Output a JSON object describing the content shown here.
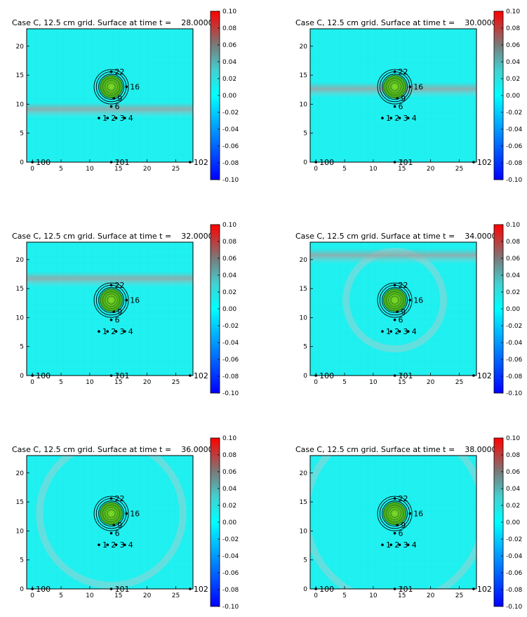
{
  "figure": {
    "panel_count": 6
  },
  "chart_data": [
    {
      "type": "heatmap",
      "title": "Case C, 12.5 cm grid. Surface at time t =    28.000000000",
      "time": 28,
      "xticks": [
        "0",
        "5",
        "10",
        "15",
        "20",
        "25"
      ],
      "yticks": [
        "0",
        "5",
        "10",
        "15",
        "20"
      ],
      "xlim": [
        -1,
        28
      ],
      "ylim": [
        0,
        23
      ],
      "colorbar": {
        "min": -0.1,
        "max": 0.1,
        "ticks": [
          "-0.10",
          "-0.08",
          "-0.06",
          "-0.04",
          "-0.02",
          "0.00",
          "0.02",
          "0.04",
          "0.06",
          "0.08",
          "0.10"
        ],
        "colors": [
          "#0000ff",
          "#00ffff",
          "#ff0000"
        ]
      },
      "wave_front": {
        "kind": "band",
        "y": 9.2
      },
      "obstacle": {
        "cx": 13.75,
        "cy": 13,
        "radius": 1.6,
        "rings": [
          2.2,
          2.6,
          3.0
        ]
      },
      "gauges": [
        {
          "label": "1",
          "x": 11.6,
          "y": 7.6
        },
        {
          "label": "2",
          "x": 13.1,
          "y": 7.6
        },
        {
          "label": "3",
          "x": 14.6,
          "y": 7.6
        },
        {
          "label": "4",
          "x": 16.1,
          "y": 7.6
        },
        {
          "label": "6",
          "x": 13.75,
          "y": 9.6
        },
        {
          "label": "9",
          "x": 14.2,
          "y": 11.0
        },
        {
          "label": "16",
          "x": 16.4,
          "y": 13.0
        },
        {
          "label": "22",
          "x": 13.75,
          "y": 15.6
        },
        {
          "label": "100",
          "x": 0,
          "y": 0
        },
        {
          "label": "101",
          "x": 13.75,
          "y": 0
        },
        {
          "label": "102",
          "x": 27.5,
          "y": 0
        }
      ]
    },
    {
      "type": "heatmap",
      "title": "Case C, 12.5 cm grid. Surface at time t =    30.000000000",
      "time": 30,
      "xticks": [
        "0",
        "5",
        "10",
        "15",
        "20",
        "25"
      ],
      "yticks": [
        "0",
        "5",
        "10",
        "15",
        "20"
      ],
      "xlim": [
        -1,
        28
      ],
      "ylim": [
        0,
        23
      ],
      "colorbar": {
        "min": -0.1,
        "max": 0.1,
        "ticks": [
          "-0.10",
          "-0.08",
          "-0.06",
          "-0.04",
          "-0.02",
          "0.00",
          "0.02",
          "0.04",
          "0.06",
          "0.08",
          "0.10"
        ],
        "colors": [
          "#0000ff",
          "#00ffff",
          "#ff0000"
        ]
      },
      "wave_front": {
        "kind": "band",
        "y": 12.7
      },
      "obstacle": {
        "cx": 13.75,
        "cy": 13,
        "radius": 1.6,
        "rings": [
          2.2,
          2.6,
          3.0
        ]
      },
      "gauges": [
        {
          "label": "1",
          "x": 11.6,
          "y": 7.6
        },
        {
          "label": "2",
          "x": 13.1,
          "y": 7.6
        },
        {
          "label": "3",
          "x": 14.6,
          "y": 7.6
        },
        {
          "label": "4",
          "x": 16.1,
          "y": 7.6
        },
        {
          "label": "6",
          "x": 13.75,
          "y": 9.6
        },
        {
          "label": "9",
          "x": 14.2,
          "y": 11.0
        },
        {
          "label": "16",
          "x": 16.4,
          "y": 13.0
        },
        {
          "label": "22",
          "x": 13.75,
          "y": 15.6
        },
        {
          "label": "100",
          "x": 0,
          "y": 0
        },
        {
          "label": "101",
          "x": 13.75,
          "y": 0
        },
        {
          "label": "102",
          "x": 27.5,
          "y": 0
        }
      ]
    },
    {
      "type": "heatmap",
      "title": "Case C, 12.5 cm grid. Surface at time t =    32.000000000",
      "time": 32,
      "xticks": [
        "0",
        "5",
        "10",
        "15",
        "20",
        "25"
      ],
      "yticks": [
        "0",
        "5",
        "10",
        "15",
        "20"
      ],
      "xlim": [
        -1,
        28
      ],
      "ylim": [
        0,
        23
      ],
      "colorbar": {
        "min": -0.1,
        "max": 0.1,
        "ticks": [
          "-0.10",
          "-0.08",
          "-0.06",
          "-0.04",
          "-0.02",
          "0.00",
          "0.02",
          "0.04",
          "0.06",
          "0.08",
          "0.10"
        ],
        "colors": [
          "#0000ff",
          "#00ffff",
          "#ff0000"
        ]
      },
      "wave_front": {
        "kind": "band",
        "y": 16.8
      },
      "obstacle": {
        "cx": 13.75,
        "cy": 13,
        "radius": 1.6,
        "rings": [
          2.2,
          2.6,
          3.0
        ]
      },
      "gauges": [
        {
          "label": "1",
          "x": 11.6,
          "y": 7.6
        },
        {
          "label": "2",
          "x": 13.1,
          "y": 7.6
        },
        {
          "label": "3",
          "x": 14.6,
          "y": 7.6
        },
        {
          "label": "4",
          "x": 16.1,
          "y": 7.6
        },
        {
          "label": "6",
          "x": 13.75,
          "y": 9.6
        },
        {
          "label": "9",
          "x": 14.2,
          "y": 11.0
        },
        {
          "label": "16",
          "x": 16.4,
          "y": 13.0
        },
        {
          "label": "22",
          "x": 13.75,
          "y": 15.6
        },
        {
          "label": "100",
          "x": 0,
          "y": 0
        },
        {
          "label": "101",
          "x": 13.75,
          "y": 0
        },
        {
          "label": "102",
          "x": 27.5,
          "y": 0
        }
      ]
    },
    {
      "type": "heatmap",
      "title": "Case C, 12.5 cm grid. Surface at time t =    34.000000000",
      "time": 34,
      "xticks": [
        "0",
        "5",
        "10",
        "15",
        "20",
        "25"
      ],
      "yticks": [
        "0",
        "5",
        "10",
        "15",
        "20"
      ],
      "xlim": [
        -1,
        28
      ],
      "ylim": [
        0,
        23
      ],
      "colorbar": {
        "min": -0.1,
        "max": 0.1,
        "ticks": [
          "-0.10",
          "-0.08",
          "-0.06",
          "-0.04",
          "-0.02",
          "0.00",
          "0.02",
          "0.04",
          "0.06",
          "0.08",
          "0.10"
        ],
        "colors": [
          "#0000ff",
          "#00ffff",
          "#ff0000"
        ]
      },
      "wave_front": {
        "kind": "band",
        "y": 20.8
      },
      "scatter_ring": {
        "cx": 13.75,
        "cy": 13,
        "radius": 8.5
      },
      "obstacle": {
        "cx": 13.75,
        "cy": 13,
        "radius": 1.6,
        "rings": [
          2.2,
          2.6,
          3.0
        ]
      },
      "gauges": [
        {
          "label": "1",
          "x": 11.6,
          "y": 7.6
        },
        {
          "label": "2",
          "x": 13.1,
          "y": 7.6
        },
        {
          "label": "3",
          "x": 14.6,
          "y": 7.6
        },
        {
          "label": "4",
          "x": 16.1,
          "y": 7.6
        },
        {
          "label": "6",
          "x": 13.75,
          "y": 9.6
        },
        {
          "label": "9",
          "x": 14.2,
          "y": 11.0
        },
        {
          "label": "16",
          "x": 16.4,
          "y": 13.0
        },
        {
          "label": "22",
          "x": 13.75,
          "y": 15.6
        },
        {
          "label": "100",
          "x": 0,
          "y": 0
        },
        {
          "label": "101",
          "x": 13.75,
          "y": 0
        },
        {
          "label": "102",
          "x": 27.5,
          "y": 0
        }
      ]
    },
    {
      "type": "heatmap",
      "title": "Case C, 12.5 cm grid. Surface at time t =    36.000000000",
      "time": 36,
      "xticks": [
        "0",
        "5",
        "10",
        "15",
        "20",
        "25"
      ],
      "yticks": [
        "0",
        "5",
        "10",
        "15",
        "20"
      ],
      "xlim": [
        -1,
        28
      ],
      "ylim": [
        0,
        23
      ],
      "colorbar": {
        "min": -0.1,
        "max": 0.1,
        "ticks": [
          "-0.10",
          "-0.08",
          "-0.06",
          "-0.04",
          "-0.02",
          "0.00",
          "0.02",
          "0.04",
          "0.06",
          "0.08",
          "0.10"
        ],
        "colors": [
          "#0000ff",
          "#00ffff",
          "#ff0000"
        ]
      },
      "wave_front": {
        "kind": "none"
      },
      "scatter_ring": {
        "cx": 13.75,
        "cy": 13,
        "radius": 12.5
      },
      "obstacle": {
        "cx": 13.75,
        "cy": 13,
        "radius": 1.6,
        "rings": [
          2.2,
          2.6,
          3.0
        ]
      },
      "gauges": [
        {
          "label": "1",
          "x": 11.6,
          "y": 7.6
        },
        {
          "label": "2",
          "x": 13.1,
          "y": 7.6
        },
        {
          "label": "3",
          "x": 14.6,
          "y": 7.6
        },
        {
          "label": "4",
          "x": 16.1,
          "y": 7.6
        },
        {
          "label": "6",
          "x": 13.75,
          "y": 9.6
        },
        {
          "label": "9",
          "x": 14.2,
          "y": 11.0
        },
        {
          "label": "16",
          "x": 16.4,
          "y": 13.0
        },
        {
          "label": "22",
          "x": 13.75,
          "y": 15.6
        },
        {
          "label": "100",
          "x": 0,
          "y": 0
        },
        {
          "label": "101",
          "x": 13.75,
          "y": 0
        },
        {
          "label": "102",
          "x": 27.5,
          "y": 0
        }
      ]
    },
    {
      "type": "heatmap",
      "title": "Case C, 12.5 cm grid. Surface at time t =    38.000000000",
      "time": 38,
      "xticks": [
        "0",
        "5",
        "10",
        "15",
        "20",
        "25"
      ],
      "yticks": [
        "0",
        "5",
        "10",
        "15",
        "20"
      ],
      "xlim": [
        -1,
        28
      ],
      "ylim": [
        0,
        23
      ],
      "colorbar": {
        "min": -0.1,
        "max": 0.1,
        "ticks": [
          "-0.10",
          "-0.08",
          "-0.06",
          "-0.04",
          "-0.02",
          "0.00",
          "0.02",
          "0.04",
          "0.06",
          "0.08",
          "0.10"
        ],
        "colors": [
          "#0000ff",
          "#00ffff",
          "#ff0000"
        ]
      },
      "wave_front": {
        "kind": "none"
      },
      "scatter_ring": {
        "cx": 13.75,
        "cy": 13,
        "radius": 15.5
      },
      "obstacle": {
        "cx": 13.75,
        "cy": 13,
        "radius": 1.6,
        "rings": [
          2.2,
          2.6,
          3.0
        ]
      },
      "gauges": [
        {
          "label": "1",
          "x": 11.6,
          "y": 7.6
        },
        {
          "label": "2",
          "x": 13.1,
          "y": 7.6
        },
        {
          "label": "3",
          "x": 14.6,
          "y": 7.6
        },
        {
          "label": "4",
          "x": 16.1,
          "y": 7.6
        },
        {
          "label": "6",
          "x": 13.75,
          "y": 9.6
        },
        {
          "label": "9",
          "x": 14.2,
          "y": 11.0
        },
        {
          "label": "16",
          "x": 16.4,
          "y": 13.0
        },
        {
          "label": "22",
          "x": 13.75,
          "y": 15.6
        },
        {
          "label": "100",
          "x": 0,
          "y": 0
        },
        {
          "label": "101",
          "x": 13.75,
          "y": 0
        },
        {
          "label": "102",
          "x": 27.5,
          "y": 0
        }
      ]
    }
  ]
}
